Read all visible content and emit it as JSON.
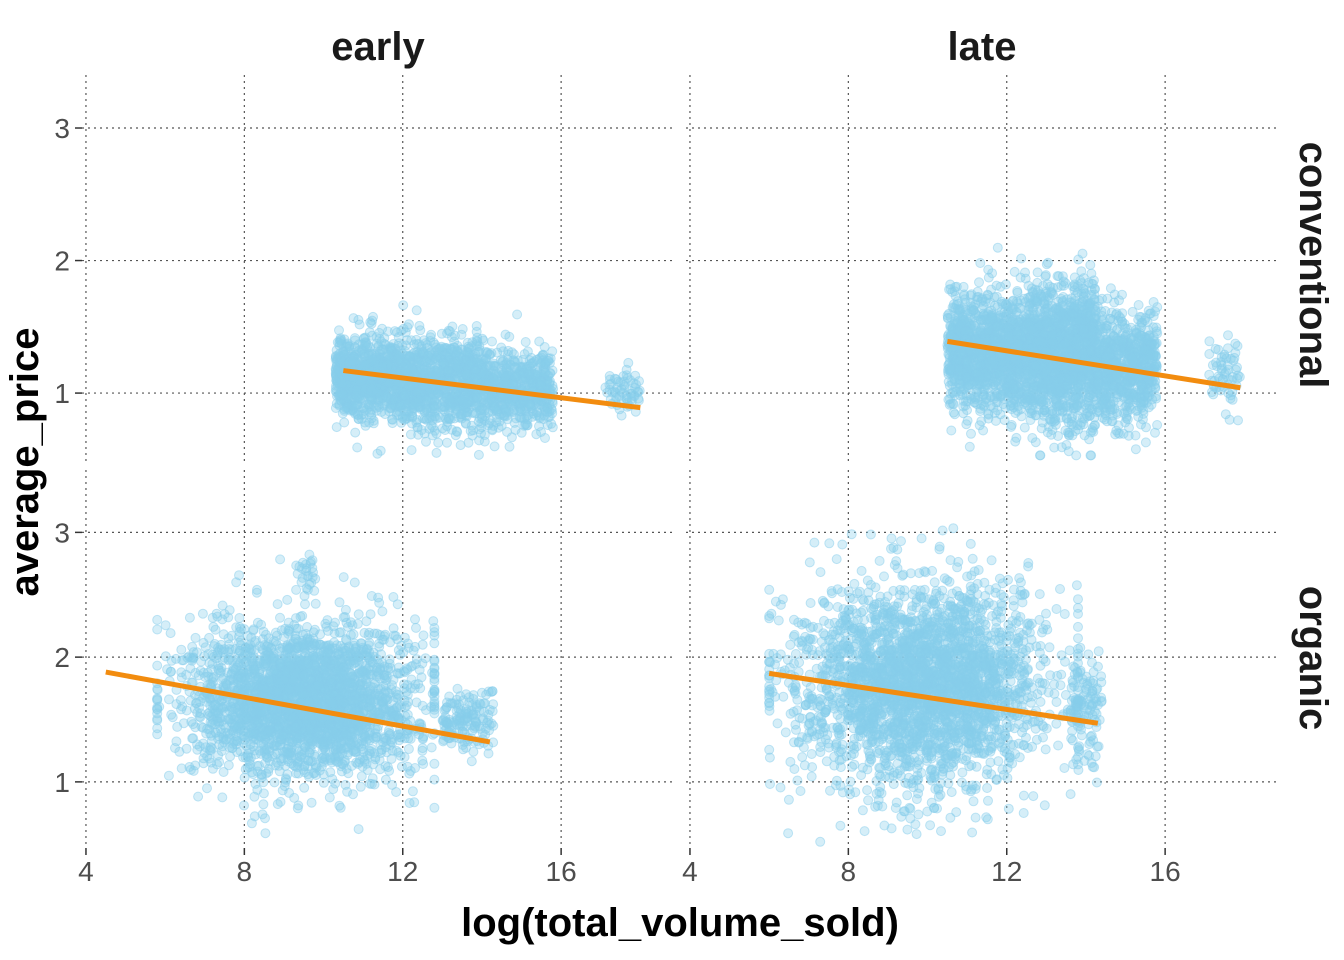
{
  "chart_data": {
    "type": "scatter",
    "xlabel": "log(total_volume_sold)",
    "ylabel": "average_price",
    "facet_columns": [
      "early",
      "late"
    ],
    "facet_rows": [
      "conventional",
      "organic"
    ],
    "x_ticks": [
      4,
      8,
      12,
      16
    ],
    "x_range": [
      3.9,
      18.8
    ],
    "panels": {
      "conventional": {
        "y_ticks": [
          1,
          2,
          3
        ],
        "y_range": [
          0.48,
          3.4
        ]
      },
      "organic": {
        "y_ticks": [
          1,
          2,
          3
        ],
        "y_range": [
          0.47,
          3.5
        ]
      }
    },
    "point_color": "#87CEEB",
    "point_opacity": 0.35,
    "line_color": "#F28C0F",
    "grid": true,
    "fits": [
      {
        "col": "early",
        "row": "conventional",
        "x": [
          10.5,
          18.0
        ],
        "y": [
          1.17,
          0.89
        ]
      },
      {
        "col": "late",
        "row": "conventional",
        "x": [
          10.5,
          17.9
        ],
        "y": [
          1.39,
          1.04
        ]
      },
      {
        "col": "early",
        "row": "organic",
        "x": [
          4.5,
          14.2
        ],
        "y": [
          1.88,
          1.32
        ]
      },
      {
        "col": "late",
        "row": "organic",
        "x": [
          6.0,
          14.3
        ],
        "y": [
          1.87,
          1.47
        ]
      }
    ],
    "clusters": [
      {
        "col": "early",
        "row": "conventional",
        "n": 900,
        "x_range": [
          10.3,
          11.9
        ],
        "y_mean": 1.13,
        "y_sd": 0.14
      },
      {
        "col": "early",
        "row": "conventional",
        "n": 1000,
        "x_range": [
          11.9,
          14.2
        ],
        "y_mean": 1.08,
        "y_sd": 0.17
      },
      {
        "col": "early",
        "row": "conventional",
        "n": 500,
        "x_range": [
          14.2,
          15.8
        ],
        "y_mean": 1.03,
        "y_sd": 0.15
      },
      {
        "col": "early",
        "row": "conventional",
        "n": 60,
        "x_range": [
          17.1,
          18.0
        ],
        "y_mean": 1.0,
        "y_sd": 0.08
      },
      {
        "col": "late",
        "row": "conventional",
        "n": 1200,
        "x_range": [
          10.5,
          12.5
        ],
        "y_mean": 1.3,
        "y_sd": 0.22
      },
      {
        "col": "late",
        "row": "conventional",
        "n": 1400,
        "x_range": [
          12.5,
          14.3
        ],
        "y_mean": 1.28,
        "y_sd": 0.26
      },
      {
        "col": "late",
        "row": "conventional",
        "n": 700,
        "x_range": [
          14.3,
          15.8
        ],
        "y_mean": 1.2,
        "y_sd": 0.2
      },
      {
        "col": "late",
        "row": "conventional",
        "n": 60,
        "x_range": [
          17.1,
          17.9
        ],
        "y_mean": 1.15,
        "y_sd": 0.12
      },
      {
        "col": "early",
        "row": "organic",
        "n": 2800,
        "x_center": 9.5,
        "x_sd": 1.4,
        "x_range": [
          5.8,
          12.8
        ],
        "y_mean": 1.65,
        "y_sd": 0.3
      },
      {
        "col": "early",
        "row": "organic",
        "n": 150,
        "x_range": [
          13.0,
          14.3
        ],
        "y_mean": 1.48,
        "y_sd": 0.13
      },
      {
        "col": "early",
        "row": "organic",
        "n": 25,
        "x_range": [
          9.3,
          9.8
        ],
        "y_mean": 2.68,
        "y_sd": 0.06
      },
      {
        "col": "late",
        "row": "organic",
        "n": 2800,
        "x_center": 9.8,
        "x_sd": 1.6,
        "x_range": [
          6.0,
          13.8
        ],
        "y_mean": 1.78,
        "y_sd": 0.4
      },
      {
        "col": "late",
        "row": "organic",
        "n": 120,
        "x_range": [
          13.6,
          14.4
        ],
        "y_mean": 1.6,
        "y_sd": 0.22
      }
    ]
  }
}
